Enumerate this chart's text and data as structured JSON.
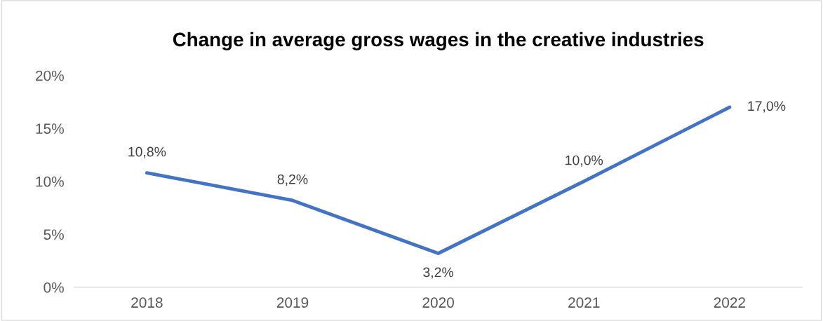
{
  "chart_data": {
    "type": "line",
    "title": "Change in average gross wages in the creative industries",
    "categories": [
      "2018",
      "2019",
      "2020",
      "2021",
      "2022"
    ],
    "series": [
      {
        "color": "#4472c4",
        "values": [
          10.8,
          8.2,
          3.2,
          10.0,
          17.0
        ],
        "value_labels": [
          "10,8%",
          "8,2%",
          "3,2%",
          "10,0%",
          "17,0%"
        ]
      }
    ],
    "ylim": [
      0,
      20
    ],
    "yticks": [
      {
        "value": 0,
        "label": "0%"
      },
      {
        "value": 5,
        "label": "5%"
      },
      {
        "value": 10,
        "label": "10%"
      },
      {
        "value": 15,
        "label": "15%"
      },
      {
        "value": 20,
        "label": "20%"
      }
    ],
    "grid": false,
    "legend": false,
    "marker": "none",
    "line_style": "solid"
  }
}
